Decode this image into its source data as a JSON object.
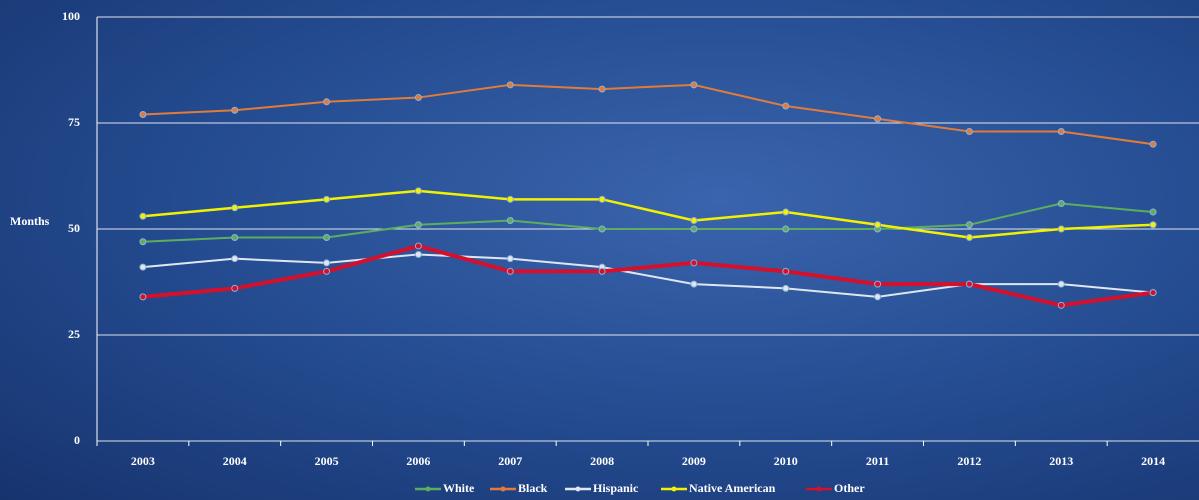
{
  "chart_data": {
    "type": "line",
    "y_label": "Months",
    "categories": [
      "2003",
      "2004",
      "2005",
      "2006",
      "2007",
      "2008",
      "2009",
      "2010",
      "2011",
      "2012",
      "2013",
      "2014"
    ],
    "series": [
      {
        "name": "White",
        "color": "#5cae5e",
        "values": [
          47,
          48,
          48,
          51,
          52,
          50,
          50,
          50,
          50,
          51,
          56,
          54
        ]
      },
      {
        "name": "Black",
        "color": "#e07b3c",
        "values": [
          77,
          78,
          80,
          81,
          84,
          83,
          84,
          79,
          76,
          73,
          73,
          70
        ]
      },
      {
        "name": "Hispanic",
        "color": "#dfe6f2",
        "values": [
          41,
          43,
          42,
          44,
          43,
          41,
          37,
          36,
          34,
          37,
          37,
          35
        ]
      },
      {
        "name": "Native American",
        "color": "#f2f200",
        "values": [
          53,
          55,
          57,
          59,
          57,
          57,
          52,
          54,
          51,
          48,
          50,
          51
        ]
      },
      {
        "name": "Other",
        "color": "#d4102c",
        "values": [
          34,
          36,
          40,
          46,
          40,
          40,
          42,
          40,
          37,
          37,
          32,
          35
        ]
      }
    ],
    "ylim": [
      0,
      100
    ],
    "yticks": [
      0,
      25,
      50,
      75,
      100
    ],
    "grid": true,
    "legend": "bottom"
  }
}
